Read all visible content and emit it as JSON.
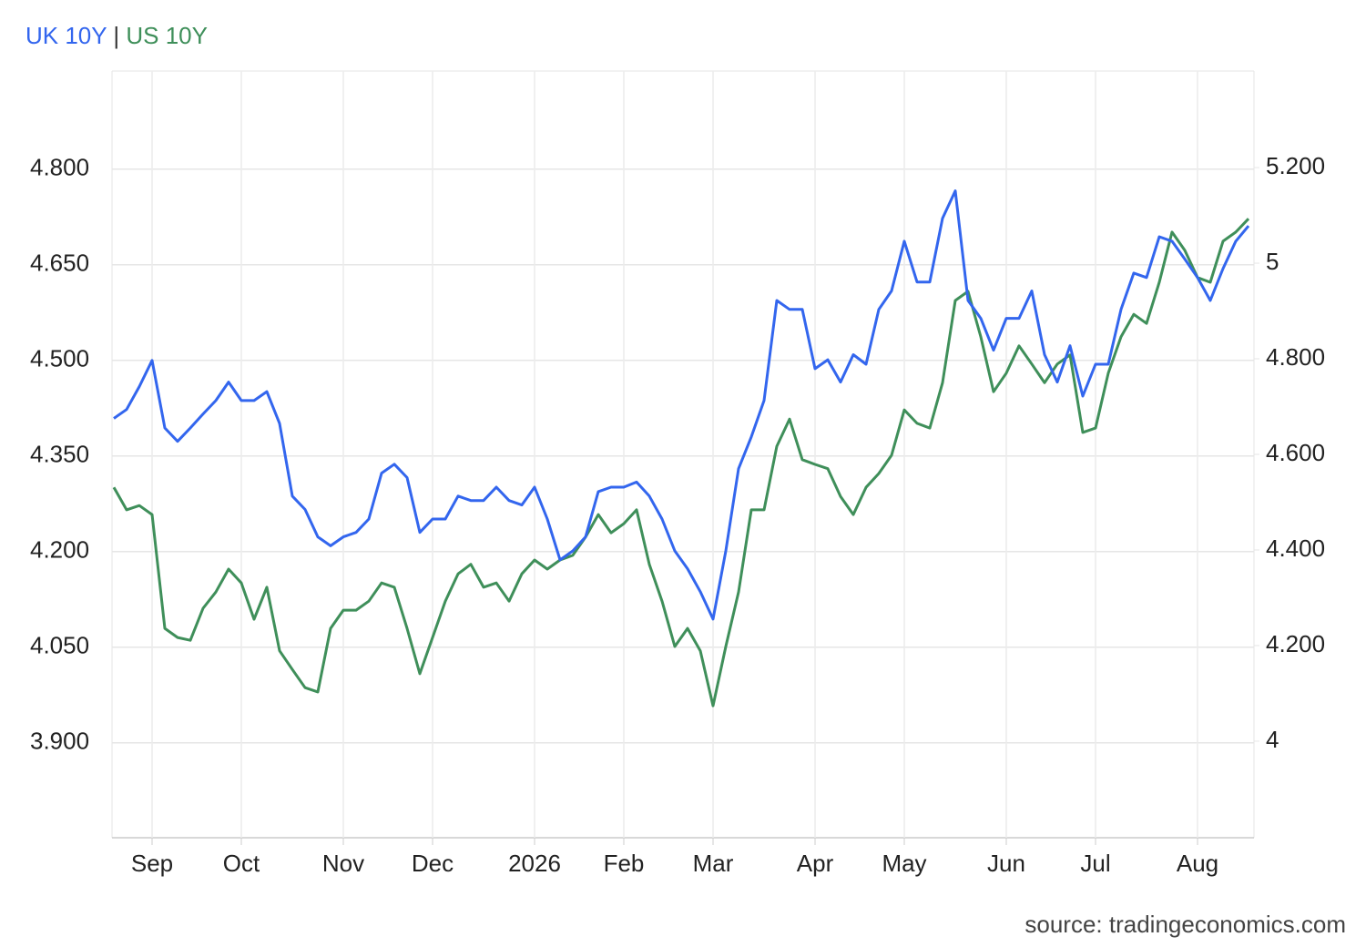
{
  "chart_data": {
    "type": "line",
    "legend_separator": "|",
    "source": "source: tradingeconomics.com",
    "categories": [
      null,
      null,
      null,
      "Sep",
      null,
      null,
      null,
      null,
      null,
      null,
      "Oct",
      null,
      null,
      null,
      null,
      null,
      null,
      null,
      "Nov",
      null,
      null,
      null,
      null,
      null,
      null,
      "Dec",
      null,
      null,
      null,
      null,
      null,
      null,
      null,
      "2026",
      null,
      null,
      null,
      null,
      null,
      null,
      "Feb",
      null,
      null,
      null,
      null,
      null,
      null,
      "Mar",
      null,
      null,
      null,
      null,
      null,
      null,
      null,
      "Apr",
      null,
      null,
      null,
      null,
      null,
      null,
      "May",
      null,
      null,
      null,
      null,
      null,
      null,
      null,
      "Jun",
      null,
      null,
      null,
      null,
      null,
      null,
      "Jul",
      null,
      null,
      null,
      null,
      null,
      null,
      null,
      "Aug",
      null,
      null,
      null,
      null
    ],
    "series": [
      {
        "name": "UK 10Y",
        "color": "#3366ee",
        "axis": "y",
        "values": [
          4.409,
          4.423,
          4.459,
          4.5,
          4.394,
          4.373,
          4.394,
          4.416,
          4.437,
          4.466,
          4.437,
          4.437,
          4.451,
          4.401,
          4.287,
          4.266,
          4.223,
          4.209,
          4.223,
          4.23,
          4.251,
          4.323,
          4.337,
          4.316,
          4.23,
          4.251,
          4.251,
          4.287,
          4.28,
          4.28,
          4.301,
          4.28,
          4.273,
          4.301,
          4.251,
          4.187,
          4.201,
          4.223,
          4.294,
          4.301,
          4.301,
          4.309,
          4.287,
          4.251,
          4.201,
          4.173,
          4.137,
          4.094,
          4.201,
          4.33,
          4.38,
          4.437,
          4.594,
          4.58,
          4.58,
          4.487,
          4.501,
          4.466,
          4.509,
          4.494,
          4.58,
          4.609,
          4.687,
          4.623,
          4.623,
          4.723,
          4.766,
          4.594,
          4.566,
          4.516,
          4.566,
          4.566,
          4.609,
          4.509,
          4.466,
          4.523,
          4.444,
          4.494,
          4.494,
          4.58,
          4.637,
          4.63,
          4.694,
          4.687,
          4.659,
          4.63,
          4.594,
          4.644,
          4.687,
          4.711
        ]
      },
      {
        "name": "US 10Y",
        "color": "#3f8f5a",
        "axis": "y2",
        "values": [
          4.531,
          4.484,
          4.493,
          4.474,
          4.236,
          4.217,
          4.211,
          4.278,
          4.312,
          4.36,
          4.331,
          4.255,
          4.322,
          4.189,
          4.15,
          4.112,
          4.103,
          4.236,
          4.274,
          4.274,
          4.293,
          4.331,
          4.322,
          4.236,
          4.141,
          4.217,
          4.293,
          4.35,
          4.37,
          4.322,
          4.331,
          4.293,
          4.35,
          4.379,
          4.36,
          4.379,
          4.389,
          4.427,
          4.474,
          4.436,
          4.455,
          4.484,
          4.37,
          4.293,
          4.198,
          4.236,
          4.189,
          4.074,
          4.198,
          4.312,
          4.484,
          4.484,
          4.617,
          4.674,
          4.589,
          4.579,
          4.57,
          4.512,
          4.474,
          4.531,
          4.56,
          4.598,
          4.693,
          4.665,
          4.655,
          4.75,
          4.922,
          4.941,
          4.846,
          4.731,
          4.77,
          4.827,
          4.789,
          4.75,
          4.789,
          4.808,
          4.646,
          4.655,
          4.77,
          4.846,
          4.893,
          4.874,
          4.96,
          5.065,
          5.027,
          4.97,
          4.96,
          5.046,
          5.065,
          5.093
        ]
      }
    ],
    "ylim": [
      3.751,
      4.954
    ],
    "yticks": [
      {
        "value": 3.9,
        "label": "3.900"
      },
      {
        "value": 4.05,
        "label": "4.050"
      },
      {
        "value": 4.2,
        "label": "4.200"
      },
      {
        "value": 4.35,
        "label": "4.350"
      },
      {
        "value": 4.5,
        "label": "4.500"
      },
      {
        "value": 4.65,
        "label": "4.650"
      },
      {
        "value": 4.8,
        "label": "4.800"
      }
    ],
    "y2lim": [
      3.798,
      5.402
    ],
    "y2ticks": [
      4,
      {
        "value": 4.2,
        "label": "4.200"
      },
      {
        "value": 4.4,
        "label": "4.400"
      },
      {
        "value": 4.6,
        "label": "4.600"
      },
      {
        "value": 4.8,
        "label": "4.800"
      },
      5,
      {
        "value": 5.2,
        "label": "5.200"
      }
    ],
    "grid": true
  }
}
